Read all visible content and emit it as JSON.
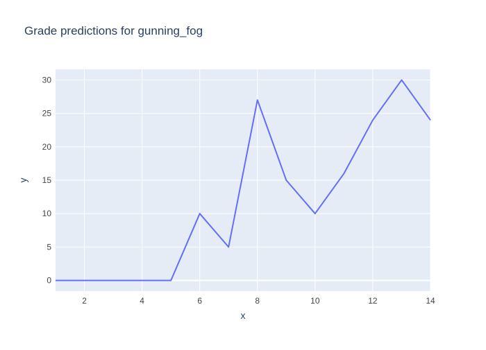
{
  "chart_data": {
    "type": "line",
    "title": "Grade predictions for gunning_fog",
    "xlabel": "x",
    "ylabel": "y",
    "xlim": [
      1,
      14
    ],
    "ylim": [
      -1.6,
      31.6
    ],
    "x_ticks": [
      2,
      4,
      6,
      8,
      10,
      12,
      14
    ],
    "y_ticks": [
      0,
      5,
      10,
      15,
      20,
      25,
      30
    ],
    "grid": true,
    "series": [
      {
        "x": [
          1,
          2,
          3,
          4,
          5,
          6,
          7,
          8,
          9,
          10,
          11,
          12,
          13,
          14
        ],
        "values": [
          0,
          0,
          0,
          0,
          0,
          10,
          5,
          27,
          15,
          10,
          16,
          24,
          30,
          24
        ],
        "color": "#636efa"
      }
    ]
  },
  "colors": {
    "plot_background": "#e5ecf6",
    "grid": "#ffffff",
    "text": "#2a3f5f",
    "tick_text": "#444444"
  }
}
